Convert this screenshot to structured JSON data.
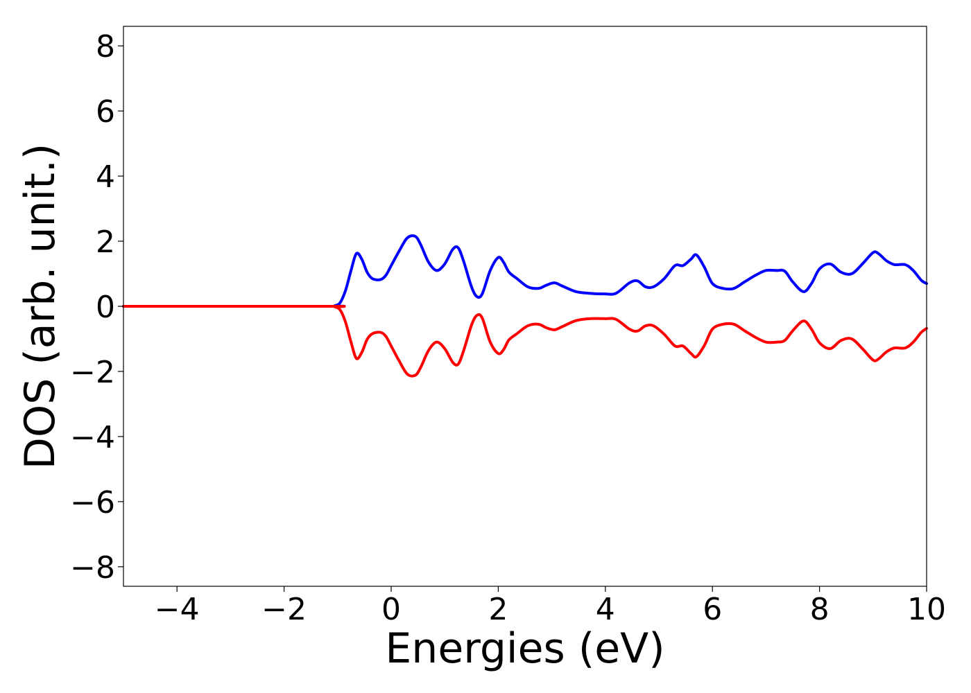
{
  "chart_data": {
    "type": "line",
    "title": "",
    "xlabel": "Energies (eV)",
    "ylabel": "DOS (arb. unit.)",
    "xlim": [
      -5,
      10
    ],
    "ylim": [
      -8.6,
      8.6
    ],
    "xticks": [
      -4,
      -2,
      0,
      2,
      4,
      6,
      8,
      10
    ],
    "xtick_labels": [
      "−4",
      "−2",
      "0",
      "2",
      "4",
      "6",
      "8",
      "10"
    ],
    "yticks": [
      -8,
      -6,
      -4,
      -2,
      0,
      2,
      4,
      6,
      8
    ],
    "ytick_labels": [
      "−8",
      "−6",
      "−4",
      "−2",
      "0",
      "2",
      "4",
      "6",
      "8"
    ],
    "grid": false,
    "legend": "none",
    "series": [
      {
        "color": "#0000ff",
        "x": [
          -5.0,
          -1.2,
          -1.05,
          -0.95,
          -0.85,
          -0.75,
          -0.65,
          -0.55,
          -0.45,
          -0.35,
          -0.2,
          -0.1,
          0.0,
          0.15,
          0.3,
          0.45,
          0.55,
          0.7,
          0.85,
          1.0,
          1.15,
          1.25,
          1.35,
          1.5,
          1.6,
          1.7,
          1.85,
          2.0,
          2.1,
          2.2,
          2.35,
          2.55,
          2.75,
          2.9,
          3.05,
          3.2,
          3.45,
          3.7,
          4.0,
          4.2,
          4.45,
          4.6,
          4.75,
          4.9,
          5.1,
          5.3,
          5.45,
          5.6,
          5.7,
          5.85,
          6.0,
          6.2,
          6.4,
          6.6,
          6.8,
          7.0,
          7.2,
          7.35,
          7.5,
          7.7,
          7.85,
          8.0,
          8.2,
          8.4,
          8.6,
          8.8,
          9.0,
          9.1,
          9.25,
          9.4,
          9.6,
          9.75,
          9.9,
          10.0
        ],
        "values": [
          0.0,
          0.0,
          0.02,
          0.12,
          0.5,
          1.1,
          1.62,
          1.45,
          1.05,
          0.85,
          0.82,
          0.95,
          1.25,
          1.7,
          2.1,
          2.15,
          1.9,
          1.35,
          1.1,
          1.3,
          1.75,
          1.8,
          1.4,
          0.6,
          0.3,
          0.38,
          1.1,
          1.5,
          1.35,
          1.05,
          0.85,
          0.6,
          0.55,
          0.65,
          0.72,
          0.62,
          0.45,
          0.4,
          0.38,
          0.4,
          0.72,
          0.78,
          0.6,
          0.6,
          0.85,
          1.25,
          1.25,
          1.45,
          1.58,
          1.2,
          0.7,
          0.55,
          0.55,
          0.75,
          0.95,
          1.1,
          1.1,
          1.08,
          0.75,
          0.45,
          0.7,
          1.15,
          1.3,
          1.05,
          1.0,
          1.3,
          1.65,
          1.62,
          1.4,
          1.28,
          1.28,
          1.1,
          0.8,
          0.7
        ]
      },
      {
        "color": "#ff0000",
        "x": [
          -5.0,
          -1.2,
          -1.05,
          -0.95,
          -0.85,
          -0.75,
          -0.65,
          -0.55,
          -0.45,
          -0.35,
          -0.2,
          -0.1,
          0.0,
          0.15,
          0.3,
          0.45,
          0.55,
          0.7,
          0.85,
          1.0,
          1.15,
          1.25,
          1.35,
          1.5,
          1.6,
          1.7,
          1.85,
          2.0,
          2.1,
          2.2,
          2.35,
          2.55,
          2.75,
          2.9,
          3.05,
          3.2,
          3.45,
          3.7,
          4.0,
          4.2,
          4.45,
          4.6,
          4.75,
          4.9,
          5.1,
          5.3,
          5.45,
          5.6,
          5.7,
          5.85,
          6.0,
          6.2,
          6.4,
          6.6,
          6.8,
          7.0,
          7.2,
          7.35,
          7.5,
          7.7,
          7.85,
          8.0,
          8.2,
          8.4,
          8.6,
          8.8,
          9.0,
          9.1,
          9.25,
          9.4,
          9.6,
          9.75,
          9.9,
          10.0
        ],
        "values": [
          0.0,
          0.0,
          -0.02,
          -0.12,
          -0.5,
          -1.1,
          -1.6,
          -1.42,
          -1.02,
          -0.84,
          -0.8,
          -0.92,
          -1.22,
          -1.68,
          -2.08,
          -2.12,
          -1.88,
          -1.35,
          -1.1,
          -1.3,
          -1.72,
          -1.78,
          -1.38,
          -0.58,
          -0.28,
          -0.36,
          -1.1,
          -1.45,
          -1.33,
          -1.03,
          -0.84,
          -0.6,
          -0.55,
          -0.66,
          -0.72,
          -0.62,
          -0.44,
          -0.38,
          -0.38,
          -0.4,
          -0.7,
          -0.76,
          -0.6,
          -0.6,
          -0.86,
          -1.22,
          -1.22,
          -1.45,
          -1.55,
          -1.2,
          -0.7,
          -0.55,
          -0.55,
          -0.75,
          -0.95,
          -1.1,
          -1.1,
          -1.05,
          -0.75,
          -0.45,
          -0.7,
          -1.12,
          -1.3,
          -1.05,
          -1.0,
          -1.3,
          -1.65,
          -1.62,
          -1.4,
          -1.28,
          -1.28,
          -1.1,
          -0.8,
          -0.68
        ]
      }
    ]
  }
}
